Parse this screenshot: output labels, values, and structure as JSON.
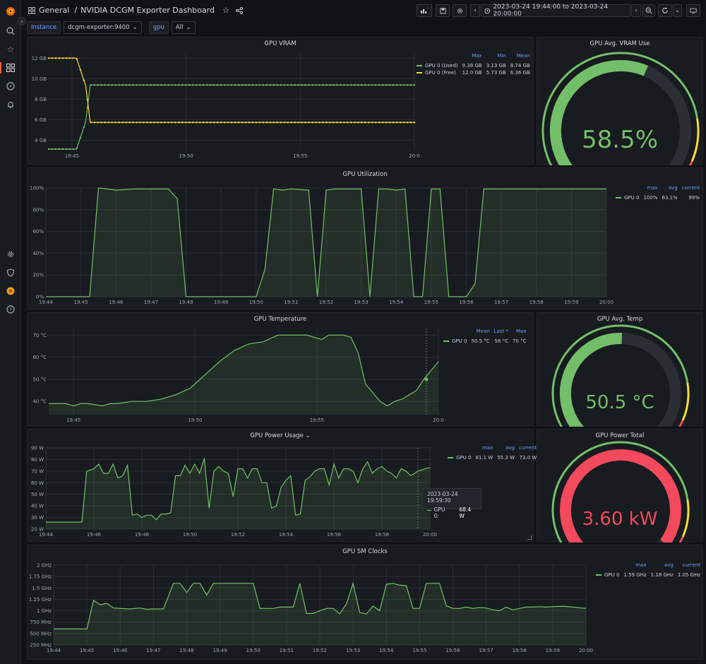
{
  "breadcrumb": {
    "folder": "General",
    "sep": "/",
    "title": "NVIDIA DCGM Exporter Dashboard"
  },
  "timerange": {
    "label": "2023-03-24 19:44:00 to 2023-03-24 20:00:00"
  },
  "vars": [
    {
      "label": "Instance",
      "value": "dcgm-exporter:9400"
    },
    {
      "label": "gpu",
      "value": "All"
    }
  ],
  "colors": {
    "green": "#73bf69",
    "yellow": "#fade2a",
    "red": "#f2495c",
    "orange": "#ff9830",
    "blue": "#6e9fff"
  },
  "panels": {
    "vram": {
      "title": "GPU VRAM",
      "legend": {
        "headers": [
          "Max",
          "Min",
          "Mean"
        ],
        "rows": [
          {
            "name": "GPU 0 (Used)",
            "color": "#73bf69",
            "vals": [
              "9.38 GB",
              "3.13 GB",
              "8.74 GB"
            ]
          },
          {
            "name": "GPU 0 (Free)",
            "color": "#fade2a",
            "vals": [
              "12.0 GB",
              "5.73 GB",
              "6.36 GB"
            ]
          }
        ]
      }
    },
    "vram_gauge": {
      "title": "GPU Avg. VRAM Use",
      "value": "58.5%",
      "fraction": 0.585
    },
    "util": {
      "title": "GPU Utilization",
      "legend": {
        "headers": [
          "max",
          "avg",
          "current"
        ],
        "rows": [
          {
            "name": "GPU 0",
            "color": "#73bf69",
            "vals": [
              "100%",
              "63.1%",
              "99%"
            ]
          }
        ]
      }
    },
    "temp": {
      "title": "GPU Temperature",
      "legend": {
        "headers": [
          "Mean",
          "Last *",
          "Max"
        ],
        "rows": [
          {
            "name": "GPU 0",
            "color": "#73bf69",
            "vals": [
              "50.5 °C",
              "58 °C",
              "70 °C"
            ]
          }
        ]
      }
    },
    "temp_gauge": {
      "title": "GPU Avg. Temp",
      "value": "50.5 °C",
      "fraction": 0.505
    },
    "power": {
      "title": "GPU Power Usage",
      "legend": {
        "headers": [
          "max",
          "avg",
          "current"
        ],
        "rows": [
          {
            "name": "GPU 0",
            "color": "#73bf69",
            "vals": [
              "81.1 W",
              "55.3 W",
              "73.0 W"
            ]
          }
        ]
      },
      "tooltip": {
        "time": "2023-03-24 19:59:30",
        "series": "GPU 0:",
        "value": "68.4 W"
      }
    },
    "power_gauge": {
      "title": "GPU Power Total",
      "value": "3.60 kW",
      "fraction": 0.97
    },
    "clocks": {
      "title": "GPU SM Clocks",
      "legend": {
        "headers": [
          "max",
          "avg",
          "current"
        ],
        "rows": [
          {
            "name": "GPU 0",
            "color": "#73bf69",
            "vals": [
              "1.59 GHz",
              "1.18 GHz",
              "1.05 GHz"
            ]
          }
        ]
      }
    }
  },
  "chart_data": [
    {
      "type": "line",
      "id": "vram",
      "title": "GPU VRAM",
      "x_ticks": [
        "19:45",
        "19:50",
        "19:55",
        "20:0"
      ],
      "y_ticks": [
        "4 GB",
        "6 GB",
        "8 GB",
        "10 GB",
        "12 GB"
      ],
      "ylim": [
        3,
        12.5
      ],
      "xlim": [
        19.733,
        20.0
      ],
      "series": [
        {
          "name": "GPU 0 (Used)",
          "color": "#73bf69",
          "x": [
            19.733,
            19.75,
            19.7533,
            19.76,
            19.7633,
            19.77,
            19.78,
            19.79,
            19.8,
            19.85,
            19.9,
            19.95,
            20.0
          ],
          "y": [
            3.13,
            3.13,
            3.13,
            5.8,
            9.38,
            9.38,
            9.38,
            9.38,
            9.38,
            9.38,
            9.38,
            9.38,
            9.38
          ]
        },
        {
          "name": "GPU 0 (Free)",
          "color": "#fade2a",
          "x": [
            19.733,
            19.75,
            19.7533,
            19.76,
            19.7633,
            19.77,
            19.78,
            19.79,
            19.8,
            19.85,
            19.9,
            19.95,
            20.0
          ],
          "y": [
            12.0,
            12.0,
            12.0,
            9.3,
            5.73,
            5.73,
            5.73,
            5.73,
            5.73,
            5.73,
            5.73,
            5.73,
            5.73
          ]
        }
      ]
    },
    {
      "type": "area",
      "id": "util",
      "title": "GPU Utilization",
      "x_ticks": [
        "19:44",
        "19:45",
        "19:46",
        "19:47",
        "19:48",
        "19:49",
        "19:50",
        "19:51",
        "19:52",
        "19:53",
        "19:54",
        "19:55",
        "19:56",
        "19:57",
        "19:58",
        "19:59",
        "20:00"
      ],
      "y_ticks": [
        "0%",
        "20%",
        "40%",
        "60%",
        "80%",
        "100%"
      ],
      "ylim": [
        0,
        100
      ],
      "xlim": [
        0,
        16
      ],
      "series": [
        {
          "name": "GPU 0",
          "color": "#73bf69",
          "x": [
            0,
            1.25,
            1.5,
            1.75,
            2.0,
            2.5,
            3.0,
            3.5,
            3.75,
            4.0,
            4.25,
            5.5,
            6.0,
            6.25,
            6.5,
            6.75,
            7.0,
            7.5,
            7.75,
            8.0,
            8.25,
            8.5,
            9.0,
            9.25,
            9.5,
            9.75,
            10.0,
            10.25,
            10.5,
            10.75,
            11.0,
            11.25,
            11.5,
            11.75,
            12.0,
            12.25,
            12.5,
            12.75,
            13.0,
            13.5,
            14.0,
            15.0,
            16.0
          ],
          "y": [
            0,
            0,
            100,
            99,
            98,
            99,
            99,
            99,
            90,
            0,
            0,
            0,
            0,
            25,
            99,
            98,
            99,
            98,
            0,
            98,
            99,
            99,
            99,
            0,
            99,
            99,
            98,
            99,
            0,
            0,
            99,
            99,
            0,
            0,
            0,
            12,
            99,
            99,
            99,
            99,
            99,
            99,
            99
          ]
        }
      ]
    },
    {
      "type": "area",
      "id": "temp",
      "title": "GPU Temperature",
      "x_ticks": [
        "19:45",
        "19:50",
        "19:55",
        "20:0"
      ],
      "y_ticks": [
        "40 °C",
        "50 °C",
        "60 °C",
        "70 °C"
      ],
      "ylim": [
        34,
        73
      ],
      "xlim": [
        19.733,
        20.0
      ],
      "series": [
        {
          "name": "GPU 0",
          "color": "#73bf69",
          "x": [
            19.733,
            19.745,
            19.75,
            19.755,
            19.76,
            19.77,
            19.775,
            19.78,
            19.79,
            19.8,
            19.81,
            19.82,
            19.83,
            19.84,
            19.85,
            19.86,
            19.87,
            19.88,
            19.89,
            19.9,
            19.91,
            19.92,
            19.925,
            19.93,
            19.935,
            19.94,
            19.945,
            19.95,
            19.955,
            19.96,
            19.965,
            19.97,
            19.975,
            19.98,
            19.985,
            19.99,
            20.0
          ],
          "y": [
            39,
            39,
            38,
            39,
            39,
            38,
            39,
            39,
            40,
            40,
            41,
            43,
            46,
            52,
            58,
            63,
            66,
            67,
            70,
            70,
            70,
            68,
            70,
            70,
            70,
            69,
            62,
            48,
            44,
            40,
            38,
            40,
            41,
            43,
            45,
            50,
            58
          ]
        }
      ]
    },
    {
      "type": "area",
      "id": "power",
      "title": "GPU Power Usage",
      "x_ticks": [
        "19:44",
        "19:46",
        "19:48",
        "19:50",
        "19:52",
        "19:54",
        "19:56",
        "19:58",
        "20:00"
      ],
      "y_ticks": [
        "20 W",
        "30 W",
        "40 W",
        "50 W",
        "60 W",
        "70 W",
        "80 W",
        "90 W"
      ],
      "ylim": [
        20,
        90
      ],
      "xlim": [
        0,
        16
      ],
      "series": [
        {
          "name": "GPU 0",
          "color": "#73bf69",
          "x": [
            0,
            1.5,
            1.7,
            2.0,
            2.2,
            2.4,
            2.6,
            2.8,
            3.0,
            3.2,
            3.4,
            3.6,
            3.8,
            4.0,
            4.2,
            4.4,
            4.6,
            4.8,
            5.0,
            5.2,
            5.4,
            5.6,
            5.8,
            6.0,
            6.2,
            6.4,
            6.6,
            6.8,
            7.0,
            7.2,
            7.4,
            7.6,
            7.8,
            8.0,
            8.2,
            8.4,
            8.6,
            8.8,
            9.0,
            9.2,
            9.4,
            9.6,
            9.8,
            10.0,
            10.2,
            10.4,
            10.6,
            10.8,
            11.0,
            11.2,
            11.4,
            11.6,
            11.8,
            12.0,
            12.2,
            12.4,
            12.6,
            12.8,
            13.0,
            13.2,
            13.4,
            13.6,
            13.8,
            14.0,
            14.2,
            14.4,
            14.6,
            14.8,
            15.0,
            15.2,
            15.5,
            15.8,
            16.0
          ],
          "y": [
            26,
            26,
            70,
            72,
            76,
            68,
            68,
            76,
            64,
            66,
            75,
            32,
            33,
            30,
            32,
            32,
            28,
            33,
            33,
            34,
            66,
            66,
            75,
            68,
            76,
            68,
            81,
            38,
            70,
            74,
            70,
            68,
            48,
            72,
            72,
            64,
            72,
            72,
            60,
            60,
            38,
            40,
            56,
            62,
            66,
            32,
            33,
            62,
            65,
            70,
            72,
            72,
            58,
            76,
            64,
            72,
            72,
            70,
            60,
            72,
            78,
            68,
            72,
            74,
            70,
            68,
            64,
            72,
            70,
            66,
            70,
            72,
            73
          ]
        }
      ]
    },
    {
      "type": "area",
      "id": "clocks",
      "title": "GPU SM Clocks",
      "x_ticks": [
        "19:44",
        "19:45",
        "19:46",
        "19:47",
        "19:48",
        "19:49",
        "19:50",
        "19:51",
        "19:52",
        "19:53",
        "19:54",
        "19:55",
        "19:56",
        "19:57",
        "19:58",
        "19:59",
        "20:00"
      ],
      "y_ticks": [
        "250 MHz",
        "500 MHz",
        "750 MHz",
        "1 GHz",
        "1.25 GHz",
        "1.5 GHz",
        "1.75 GHz",
        "2 GHz"
      ],
      "ylim": [
        250,
        2000
      ],
      "xlim": [
        0,
        16
      ],
      "series": [
        {
          "name": "GPU 0",
          "color": "#73bf69",
          "x": [
            0,
            1.0,
            1.2,
            1.4,
            1.6,
            1.8,
            2.0,
            2.3,
            2.6,
            2.8,
            3.0,
            3.3,
            3.6,
            3.8,
            4.0,
            4.2,
            4.4,
            4.6,
            4.8,
            5.0,
            5.2,
            5.4,
            5.6,
            5.8,
            6.0,
            6.2,
            6.4,
            6.6,
            6.8,
            7.0,
            7.2,
            7.4,
            7.6,
            7.8,
            8.0,
            8.2,
            8.4,
            8.6,
            8.8,
            9.0,
            9.2,
            9.4,
            9.6,
            9.8,
            10.0,
            10.2,
            10.4,
            10.6,
            10.8,
            11.0,
            11.2,
            11.4,
            11.6,
            11.8,
            12.0,
            12.2,
            12.4,
            12.6,
            12.8,
            13.0,
            13.2,
            13.4,
            13.6,
            13.8,
            14.0,
            14.2,
            14.4,
            14.6,
            14.8,
            15.0,
            15.3,
            15.6,
            16.0
          ],
          "y": [
            600,
            600,
            1230,
            1130,
            1160,
            1060,
            1050,
            1040,
            1060,
            1030,
            1040,
            1040,
            1600,
            1600,
            1400,
            1600,
            1600,
            1340,
            1600,
            1600,
            1600,
            1600,
            1600,
            1600,
            1600,
            1050,
            1050,
            1050,
            1080,
            1080,
            1080,
            1600,
            940,
            940,
            1000,
            1050,
            1050,
            930,
            1150,
            1600,
            960,
            930,
            1100,
            1000,
            1580,
            1600,
            1560,
            1550,
            1050,
            1050,
            1600,
            1600,
            1600,
            1110,
            1050,
            1050,
            1080,
            1050,
            1070,
            1060,
            1020,
            1000,
            1080,
            1020,
            1050,
            1080,
            1080,
            1090,
            1080,
            1090,
            1100,
            1080,
            1050
          ]
        }
      ]
    }
  ]
}
